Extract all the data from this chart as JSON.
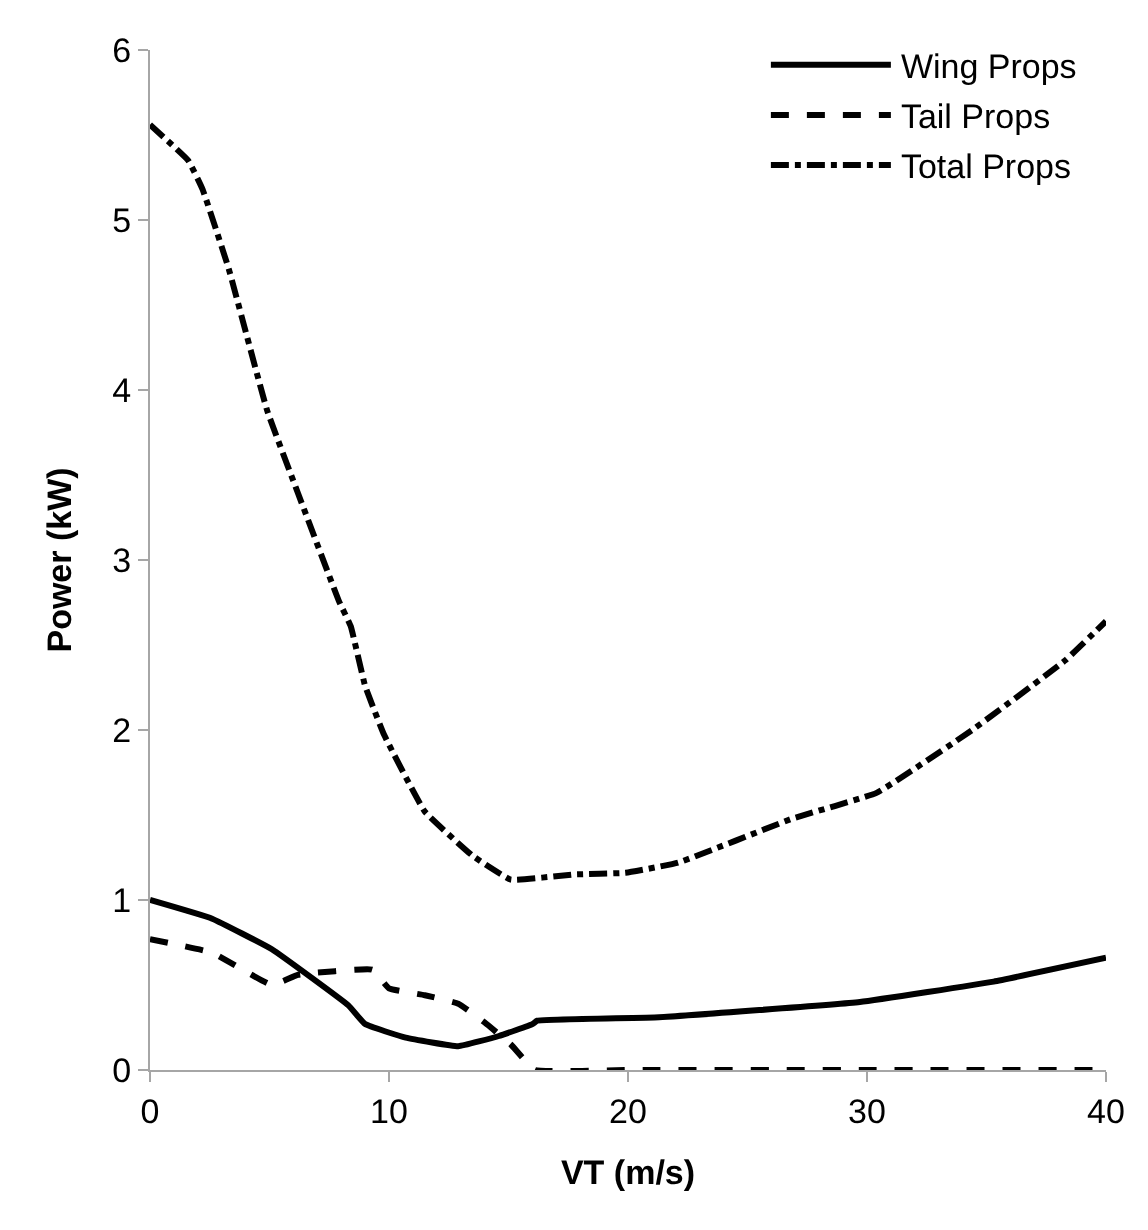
{
  "chart_data": {
    "type": "line",
    "xlabel": "VT (m/s)",
    "ylabel": "Power (kW)",
    "xlim": [
      0,
      40
    ],
    "xticks": [
      0,
      10,
      20,
      30,
      40
    ],
    "ylim": [
      0,
      6
    ],
    "yticks": [
      0,
      1,
      2,
      3,
      4,
      5,
      6
    ],
    "legend": "top right",
    "series": [
      {
        "name": "Wing Props",
        "color": "#000000",
        "line_style": "solid",
        "x": [
          0,
          2.6,
          5.1,
          8.3,
          9.0,
          10.7,
          12.9,
          14.6,
          16.0,
          16.2,
          21.3,
          29.7,
          35.3,
          40
        ],
        "values": [
          1.0,
          0.89,
          0.71,
          0.38,
          0.27,
          0.19,
          0.14,
          0.2,
          0.27,
          0.29,
          0.31,
          0.4,
          0.52,
          0.66
        ]
      },
      {
        "name": "Tail Props",
        "color": "#000000",
        "line_style": "dashed",
        "x": [
          0,
          2.6,
          5.1,
          6.2,
          9.3,
          10,
          11.5,
          12.9,
          14,
          15.1,
          16.1,
          20,
          30,
          40
        ],
        "values": [
          0.77,
          0.69,
          0.5,
          0.56,
          0.59,
          0.48,
          0.44,
          0.39,
          0.28,
          0.15,
          0.0,
          0.0,
          0.0,
          0.0
        ]
      },
      {
        "name": "Total Props",
        "color": "#000000",
        "line_style": "dashdot",
        "x": [
          0,
          1.6,
          2.2,
          3.3,
          4.9,
          6.2,
          7.9,
          8.4,
          9.0,
          9.8,
          11.5,
          13.5,
          15.1,
          17.7,
          19.9,
          22.1,
          26.9,
          30.4,
          34.4,
          38.3,
          40
        ],
        "values": [
          5.56,
          5.35,
          5.18,
          4.71,
          3.88,
          3.39,
          2.76,
          2.61,
          2.26,
          1.97,
          1.52,
          1.26,
          1.12,
          1.15,
          1.16,
          1.22,
          1.48,
          1.63,
          2.0,
          2.41,
          2.64
        ]
      }
    ]
  }
}
